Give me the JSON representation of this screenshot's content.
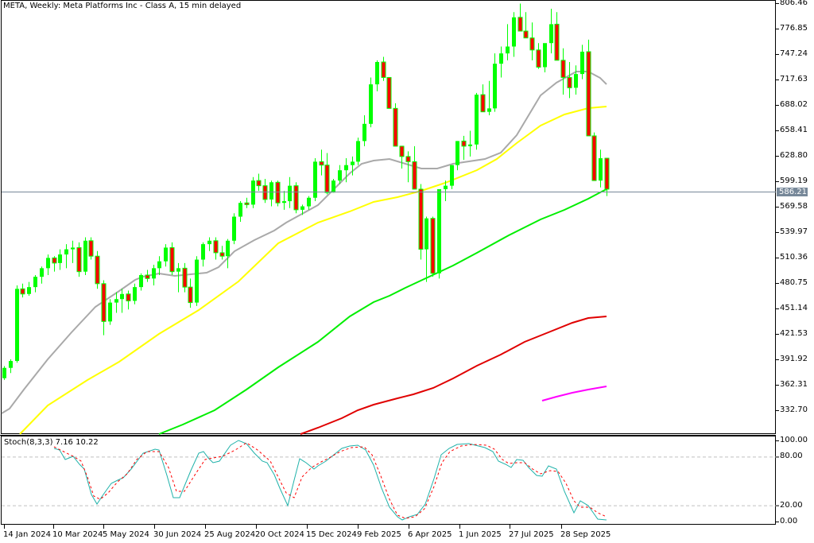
{
  "header": {
    "title": "META, Weekly:  Meta Platforms Inc - Class A, 15 min delayed"
  },
  "current_price": "586.21",
  "stochastic": {
    "label": "Stoch(8,3,3) 7.16 10.22",
    "main": "7.16",
    "signal": "10.22",
    "levels": [
      "100.00",
      "80.00",
      "20.00",
      "0.00"
    ]
  },
  "colors": {
    "bull": "#00ff00",
    "bear": "#ff0000",
    "ma_gray": "#a9a9a9",
    "ma_yellow": "#ffff00",
    "ma_green": "#00ee00",
    "ma_red": "#e00000",
    "ma_magenta": "#ff00ff",
    "stoch_main": "#20b2aa",
    "stoch_signal": "#ff0000",
    "price_line": "#778899"
  },
  "chart_data": {
    "type": "candlestick",
    "title": "META, Weekly: Meta Platforms Inc - Class A, 15 min delayed",
    "xlabel": "",
    "ylabel": "",
    "ylim": [
      318,
      806.46
    ],
    "y_ticks": [
      "806.46",
      "776.85",
      "747.24",
      "717.63",
      "688.02",
      "658.41",
      "628.80",
      "599.19",
      "569.58",
      "539.97",
      "510.36",
      "480.75",
      "451.14",
      "421.53",
      "391.92",
      "362.31",
      "332.70"
    ],
    "x_ticks": [
      "14 Jan 2024",
      "10 Mar 2024",
      "5 May 2024",
      "30 Jun 2024",
      "25 Aug 2024",
      "20 Oct 2024",
      "15 Dec 2024",
      "9 Feb 2025",
      "6 Apr 2025",
      "1 Jun 2025",
      "27 Jul 2025",
      "28 Sep 2025"
    ],
    "grid": false,
    "last_price": 586.21,
    "candles": [
      [
        370,
        384,
        368,
        382
      ],
      [
        382,
        392,
        376,
        390
      ],
      [
        390,
        478,
        388,
        474
      ],
      [
        474,
        480,
        464,
        468
      ],
      [
        468,
        482,
        466,
        476
      ],
      [
        476,
        490,
        470,
        488
      ],
      [
        488,
        500,
        480,
        498
      ],
      [
        498,
        514,
        490,
        510
      ],
      [
        510,
        512,
        494,
        504
      ],
      [
        504,
        520,
        496,
        514
      ],
      [
        514,
        526,
        498,
        520
      ],
      [
        520,
        530,
        504,
        522
      ],
      [
        522,
        528,
        488,
        494
      ],
      [
        494,
        534,
        490,
        530
      ],
      [
        530,
        534,
        508,
        512
      ],
      [
        512,
        518,
        474,
        480
      ],
      [
        480,
        484,
        420,
        436
      ],
      [
        436,
        462,
        432,
        458
      ],
      [
        458,
        470,
        446,
        462
      ],
      [
        462,
        474,
        446,
        468
      ],
      [
        468,
        472,
        450,
        460
      ],
      [
        460,
        480,
        456,
        476
      ],
      [
        476,
        492,
        472,
        490
      ],
      [
        490,
        496,
        482,
        486
      ],
      [
        486,
        502,
        478,
        498
      ],
      [
        498,
        512,
        490,
        506
      ],
      [
        506,
        526,
        500,
        522
      ],
      [
        522,
        528,
        490,
        494
      ],
      [
        494,
        504,
        470,
        498
      ],
      [
        498,
        504,
        470,
        476
      ],
      [
        476,
        486,
        452,
        458
      ],
      [
        458,
        512,
        454,
        508
      ],
      [
        508,
        528,
        500,
        526
      ],
      [
        526,
        534,
        518,
        530
      ],
      [
        530,
        534,
        508,
        516
      ],
      [
        516,
        524,
        508,
        512
      ],
      [
        512,
        532,
        498,
        530
      ],
      [
        530,
        562,
        526,
        558
      ],
      [
        558,
        576,
        552,
        574
      ],
      [
        574,
        580,
        568,
        572
      ],
      [
        572,
        604,
        568,
        600
      ],
      [
        600,
        608,
        588,
        594
      ],
      [
        594,
        602,
        574,
        578
      ],
      [
        578,
        600,
        570,
        598
      ],
      [
        598,
        600,
        570,
        574
      ],
      [
        574,
        588,
        566,
        576
      ],
      [
        576,
        604,
        568,
        594
      ],
      [
        594,
        598,
        562,
        566
      ],
      [
        566,
        572,
        560,
        570
      ],
      [
        570,
        582,
        566,
        580
      ],
      [
        580,
        626,
        576,
        622
      ],
      [
        622,
        636,
        606,
        618
      ],
      [
        618,
        632,
        584,
        586
      ],
      [
        586,
        602,
        586,
        600
      ],
      [
        600,
        618,
        596,
        612
      ],
      [
        612,
        626,
        598,
        618
      ],
      [
        618,
        628,
        606,
        622
      ],
      [
        622,
        650,
        618,
        646
      ],
      [
        646,
        676,
        640,
        666
      ],
      [
        666,
        720,
        662,
        712
      ],
      [
        712,
        740,
        704,
        738
      ],
      [
        738,
        744,
        716,
        720
      ],
      [
        720,
        720,
        694,
        684
      ],
      [
        684,
        690,
        666,
        640
      ],
      [
        640,
        640,
        614,
        628
      ],
      [
        628,
        634,
        598,
        622
      ],
      [
        622,
        640,
        590,
        590
      ],
      [
        590,
        596,
        508,
        520
      ],
      [
        520,
        558,
        482,
        556
      ],
      [
        556,
        558,
        488,
        492
      ],
      [
        492,
        580,
        486,
        590
      ],
      [
        590,
        600,
        576,
        594
      ],
      [
        594,
        618,
        590,
        618
      ],
      [
        618,
        646,
        612,
        646
      ],
      [
        646,
        652,
        624,
        640
      ],
      [
        640,
        658,
        628,
        642
      ],
      [
        642,
        702,
        636,
        700
      ],
      [
        700,
        712,
        688,
        680
      ],
      [
        680,
        716,
        676,
        684
      ],
      [
        684,
        748,
        680,
        736
      ],
      [
        736,
        756,
        720,
        748
      ],
      [
        748,
        782,
        740,
        756
      ],
      [
        756,
        796,
        744,
        790
      ],
      [
        790,
        806,
        780,
        774
      ],
      [
        774,
        796,
        768,
        766
      ],
      [
        766,
        784,
        740,
        752
      ],
      [
        752,
        760,
        730,
        732
      ],
      [
        732,
        758,
        726,
        760
      ],
      [
        760,
        800,
        748,
        782
      ],
      [
        782,
        796,
        748,
        740
      ],
      [
        740,
        754,
        700,
        720
      ],
      [
        720,
        738,
        696,
        708
      ],
      [
        708,
        734,
        700,
        724
      ],
      [
        724,
        758,
        718,
        750
      ],
      [
        750,
        764,
        660,
        652
      ],
      [
        652,
        656,
        614,
        600
      ],
      [
        600,
        636,
        592,
        626
      ],
      [
        626,
        612,
        582,
        590
      ]
    ],
    "moving_averages": [
      {
        "name": "MA gray (short)",
        "color": "#a9a9a9",
        "start_price": 336,
        "end_price": 717
      },
      {
        "name": "MA yellow",
        "color": "#ffff00",
        "start_price": 316,
        "end_price": 686
      },
      {
        "name": "MA green",
        "color": "#00ee00",
        "start_price": 310,
        "end_price": 598
      },
      {
        "name": "MA red",
        "color": "#e00000",
        "start_price": 310,
        "end_price": 442
      },
      {
        "name": "MA magenta",
        "color": "#ff00ff",
        "start_price": 345,
        "end_price": 361
      }
    ],
    "stochastic_series": {
      "name": "Stoch(8,3,3)",
      "main_last": 7.16,
      "signal_last": 10.22,
      "levels": [
        20,
        80
      ],
      "ylim": [
        0,
        100
      ]
    }
  }
}
